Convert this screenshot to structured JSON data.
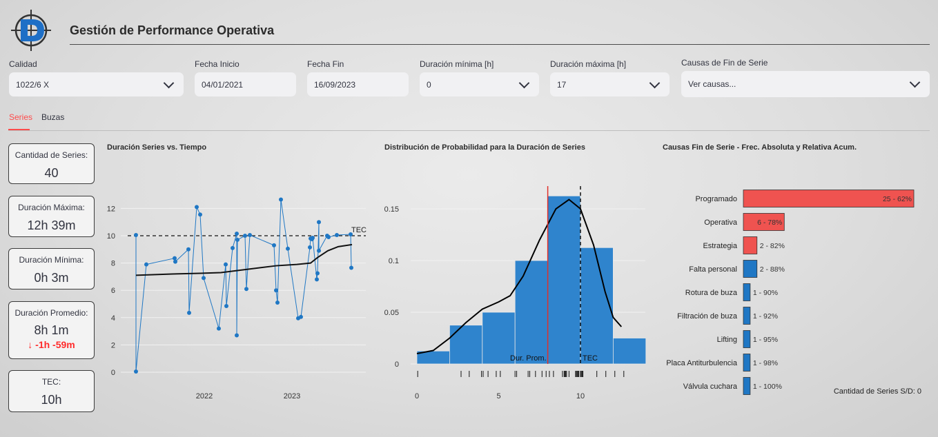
{
  "header": {
    "title": "Gestión de Performance Operativa",
    "logo_icon": "target-d-logo"
  },
  "filters": {
    "calidad": {
      "label": "Calidad",
      "value": "1022/6 X"
    },
    "fecha_inicio": {
      "label": "Fecha Inicio",
      "value": "04/01/2021"
    },
    "fecha_fin": {
      "label": "Fecha Fin",
      "value": "16/09/2023"
    },
    "dur_min": {
      "label": "Duración mínima [h]",
      "value": "0"
    },
    "dur_max": {
      "label": "Duración máxima [h]",
      "value": "17"
    },
    "causas": {
      "label": "Causas de Fin de Serie",
      "placeholder": "Ver causas..."
    }
  },
  "tabs": [
    {
      "label": "Series",
      "active": true
    },
    {
      "label": "Buzas",
      "active": false
    }
  ],
  "metrics": [
    {
      "label": "Cantidad de Series:",
      "value": "40"
    },
    {
      "label": "Duración Máxima:",
      "value": "12h 39m"
    },
    {
      "label": "Duración Mínima:",
      "value": "0h 3m"
    },
    {
      "label": "Duración Promedio:",
      "value": "8h 1m",
      "delta": "-1h -59m"
    },
    {
      "label": "TEC:",
      "value": "10h"
    }
  ],
  "colors": {
    "accent": "#ff4b4b",
    "blue": "#1f77c4",
    "red_bar": "#ef5350"
  },
  "chart_data": [
    {
      "type": "line",
      "title": "Duración Series vs. Tiempo",
      "x_ticks": [
        "2022",
        "2023"
      ],
      "y_ticks": [
        0,
        2,
        4,
        6,
        8,
        10,
        12
      ],
      "ylim": [
        0,
        13.5
      ],
      "tec_value": 10,
      "tec_label": "TEC",
      "series_points": [
        10.05,
        0.05,
        7.9,
        8.35,
        8.1,
        9.0,
        4.35,
        12.1,
        11.55,
        6.9,
        3.2,
        7.9,
        4.85,
        9.1,
        10.15,
        2.7,
        9.7,
        10.0,
        6.1,
        10.05,
        9.3,
        6.0,
        5.1,
        12.65,
        9.05,
        3.95,
        4.05,
        9.15,
        9.8,
        9.75,
        9.85,
        6.8,
        7.25,
        11.0,
        8.9,
        10.0,
        9.9,
        10.05,
        10.1,
        7.65
      ],
      "trend_points": [
        7.1,
        7.2,
        7.25,
        7.3,
        7.55,
        7.8,
        7.9,
        8.0,
        8.4,
        8.9,
        9.2,
        9.35
      ]
    },
    {
      "type": "bar",
      "title": "Distribución de Probabilidad para la Duración de Series",
      "bin_edges": [
        0,
        2,
        4,
        6,
        8,
        10,
        12,
        14
      ],
      "densities": [
        0.0125,
        0.0375,
        0.05,
        0.1,
        0.1625,
        0.1125,
        0.025
      ],
      "x_ticks": [
        0,
        5,
        10
      ],
      "y_ticks": [
        0,
        0.05,
        0.1,
        0.15
      ],
      "ylim": [
        0,
        0.17
      ],
      "mean_line": 8,
      "mean_label": "Dur. Prom.",
      "tec_line": 10,
      "tec_label": "TEC",
      "kde_points": [
        [
          0,
          0.01
        ],
        [
          1,
          0.013
        ],
        [
          2,
          0.025
        ],
        [
          3,
          0.04
        ],
        [
          4,
          0.053
        ],
        [
          5,
          0.06
        ],
        [
          5.7,
          0.066
        ],
        [
          6.5,
          0.085
        ],
        [
          7.5,
          0.12
        ],
        [
          8.5,
          0.15
        ],
        [
          9.3,
          0.159
        ],
        [
          10,
          0.15
        ],
        [
          10.8,
          0.115
        ],
        [
          11.5,
          0.07
        ],
        [
          12,
          0.045
        ],
        [
          12.5,
          0.036
        ]
      ],
      "rug": [
        0.05,
        2.7,
        3.2,
        3.95,
        4.05,
        4.35,
        4.85,
        5.1,
        6.0,
        6.1,
        6.8,
        6.9,
        7.25,
        7.65,
        7.9,
        8.1,
        8.35,
        8.9,
        9.0,
        9.05,
        9.1,
        9.15,
        9.3,
        9.7,
        9.75,
        9.8,
        9.85,
        9.9,
        10.0,
        10.05,
        10.1,
        10.15,
        11.0,
        11.55,
        12.1,
        12.65
      ]
    },
    {
      "type": "bar",
      "orientation": "horizontal",
      "title": "Causas Fin de Serie - Frec. Absoluta y Relativa Acum.",
      "categories": [
        "Programado",
        "Operativa",
        "Estrategia",
        "Falta personal",
        "Rotura de buza",
        "Filtración de buza",
        "Lifting",
        "Placa Antiturbulencia",
        "Válvula cuchara"
      ],
      "values": [
        25,
        6,
        2,
        2,
        1,
        1,
        1,
        1,
        1
      ],
      "labels": [
        "25 - 62%",
        "6 - 78%",
        "2 - 82%",
        "2 - 88%",
        "1 - 90%",
        "1 - 92%",
        "1 - 95%",
        "1 - 98%",
        "1 - 100%"
      ],
      "bar_colors": [
        "#ef5350",
        "#ef5350",
        "#ef5350",
        "#1f77c4",
        "#1f77c4",
        "#1f77c4",
        "#1f77c4",
        "#1f77c4",
        "#1f77c4"
      ],
      "note": "Cantidad de Series S/D: 0"
    }
  ]
}
